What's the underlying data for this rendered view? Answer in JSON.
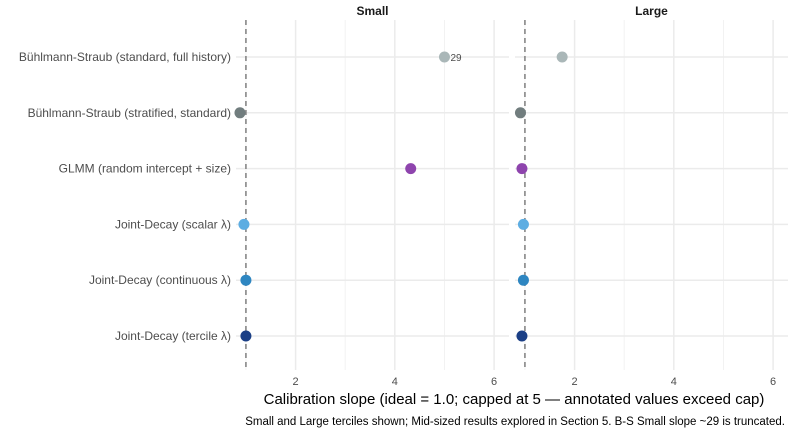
{
  "chart_data": {
    "type": "scatter",
    "title": "",
    "xlabel": "Calibration slope (ideal = 1.0; capped at 5 — annotated values exceed cap)",
    "caption": "Small and Large terciles shown; Mid-sized results explored in Section 5. B-S Small slope ~29 is truncated.",
    "categories": [
      "Bühlmann-Straub (standard, full history)",
      "Bühlmann-Straub (stratified, standard)",
      "GLMM (random intercept + size)",
      "Joint-Decay (scalar λ)",
      "Joint-Decay (continuous λ)",
      "Joint-Decay (tercile λ)"
    ],
    "colors": [
      "#aab7b8",
      "#717d7e",
      "#8e44ad",
      "#5dade2",
      "#2e86c1",
      "#1b3f86"
    ],
    "reference_line": 1.0,
    "xlim": [
      0.8,
      6.3
    ],
    "xticks": [
      2,
      4,
      6
    ],
    "grid": true,
    "legend": "none",
    "facets": [
      {
        "name": "Small",
        "values": [
          5.0,
          0.88,
          4.32,
          0.96,
          1.0,
          1.0
        ],
        "annotations": [
          {
            "category_index": 0,
            "text": "29"
          }
        ]
      },
      {
        "name": "Large",
        "values": [
          1.75,
          0.91,
          0.94,
          0.97,
          0.97,
          0.94
        ],
        "annotations": []
      }
    ]
  }
}
